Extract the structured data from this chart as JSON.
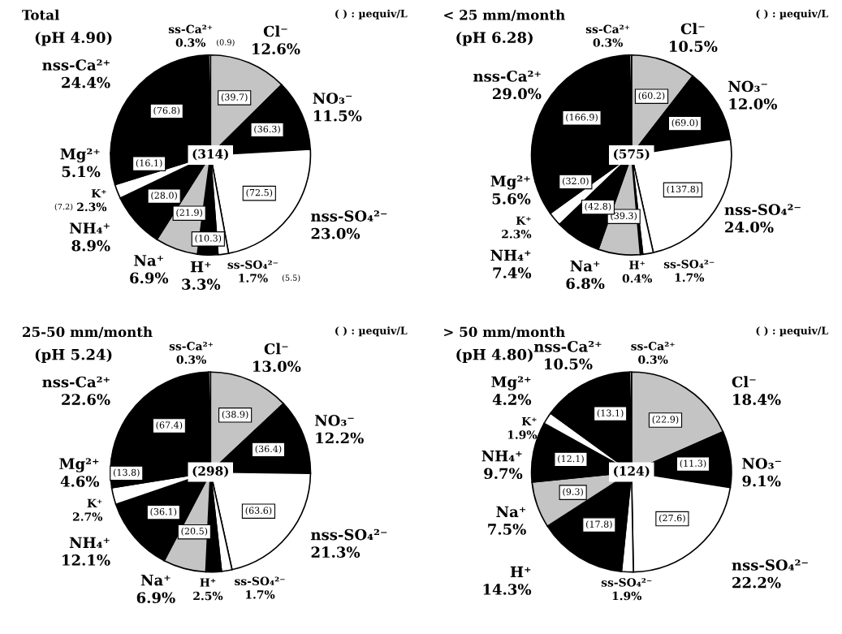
{
  "chart_data": [
    {
      "type": "pie",
      "title": "Total",
      "subtitle": "(pH 4.90)",
      "categories": [
        "Cl⁻",
        "NO₃⁻",
        "nss-SO₄²⁻",
        "ss-SO₄²⁻",
        "H⁺",
        "Na⁺",
        "NH₄⁺",
        "K⁺",
        "Mg²⁺",
        "nss-Ca²⁺",
        "ss-Ca²⁺"
      ],
      "values": [
        12.6,
        11.5,
        23.0,
        1.7,
        3.3,
        6.9,
        8.9,
        2.3,
        5.1,
        24.4,
        0.3
      ],
      "colors": [
        "#c4c4c4",
        "#000000",
        "#ffffff",
        "#ffffff",
        "#000000",
        "#c4c4c4",
        "#000000",
        "#ffffff",
        "#000000",
        "#000000",
        "#ffffff"
      ],
      "value_labels": [
        "12.6%",
        "11.5%",
        "23.0%",
        "1.7%",
        "3.3%",
        "6.9%",
        "8.9%",
        "2.3%",
        "5.1%",
        "24.4%",
        "0.3%"
      ],
      "annotations": [
        "( ) : µequiv/L",
        "(314)",
        "(39.7)",
        "(36.3)",
        "(72.5)",
        "(5.5)",
        "(10.3)",
        "(21.9)",
        "(28.0)",
        "(7.2)",
        "(16.1)",
        "(76.8)",
        "(0.9)"
      ]
    },
    {
      "type": "pie",
      "title": "< 25 mm/month",
      "subtitle": "(pH 6.28)",
      "categories": [
        "Cl⁻",
        "NO₃⁻",
        "nss-SO₄²⁻",
        "ss-SO₄²⁻",
        "H⁺",
        "Na⁺",
        "NH₄⁺",
        "K⁺",
        "Mg²⁺",
        "nss-Ca²⁺",
        "ss-Ca²⁺"
      ],
      "values": [
        10.5,
        12.0,
        24.0,
        1.7,
        0.4,
        6.8,
        7.4,
        2.3,
        5.6,
        29.0,
        0.3
      ],
      "colors": [
        "#c4c4c4",
        "#000000",
        "#ffffff",
        "#ffffff",
        "#000000",
        "#c4c4c4",
        "#000000",
        "#ffffff",
        "#000000",
        "#000000",
        "#ffffff"
      ],
      "value_labels": [
        "10.5%",
        "12.0%",
        "24.0%",
        "1.7%",
        "0.4%",
        "6.8%",
        "7.4%",
        "2.3%",
        "5.6%",
        "29.0%",
        "0.3%"
      ],
      "annotations": [
        "( ) : µequiv/L",
        "(575)",
        "(60.2)",
        "(69.0)",
        "(137.8)",
        null,
        null,
        "(39.3)",
        "(42.8)",
        null,
        "(32.0)",
        "(166.9)",
        null
      ]
    },
    {
      "type": "pie",
      "title": "25-50 mm/month",
      "subtitle": "(pH 5.24)",
      "categories": [
        "Cl⁻",
        "NO₃⁻",
        "nss-SO₄²⁻",
        "ss-SO₄²⁻",
        "H⁺",
        "Na⁺",
        "NH₄⁺",
        "K⁺",
        "Mg²⁺",
        "nss-Ca²⁺",
        "ss-Ca²⁺"
      ],
      "values": [
        13.0,
        12.2,
        21.3,
        1.7,
        2.5,
        6.9,
        12.1,
        2.7,
        4.6,
        22.6,
        0.3
      ],
      "colors": [
        "#c4c4c4",
        "#000000",
        "#ffffff",
        "#ffffff",
        "#000000",
        "#c4c4c4",
        "#000000",
        "#ffffff",
        "#000000",
        "#000000",
        "#ffffff"
      ],
      "value_labels": [
        "13.0%",
        "12.2%",
        "21.3%",
        "1.7%",
        "2.5%",
        "6.9%",
        "12.1%",
        "2.7%",
        "4.6%",
        "22.6%",
        "0.3%"
      ],
      "annotations": [
        "( ) : µequiv/L",
        "(298)",
        "(38.9)",
        "(36.4)",
        "(63.6)",
        null,
        null,
        "(20.5)",
        "(36.1)",
        null,
        "(13.8)",
        "(67.4)",
        null
      ]
    },
    {
      "type": "pie",
      "title": "> 50 mm/month",
      "subtitle": "(pH 4.80)",
      "categories": [
        "Cl⁻",
        "NO₃⁻",
        "nss-SO₄²⁻",
        "ss-SO₄²⁻",
        "H⁺",
        "Na⁺",
        "NH₄⁺",
        "K⁺",
        "Mg²⁺",
        "nss-Ca²⁺",
        "ss-Ca²⁺"
      ],
      "values": [
        18.4,
        9.1,
        22.2,
        1.9,
        14.3,
        7.5,
        9.7,
        1.9,
        4.2,
        10.5,
        0.3
      ],
      "colors": [
        "#c4c4c4",
        "#000000",
        "#ffffff",
        "#ffffff",
        "#000000",
        "#c4c4c4",
        "#000000",
        "#ffffff",
        "#000000",
        "#000000",
        "#ffffff"
      ],
      "value_labels": [
        "18.4%",
        "9.1%",
        "22.2%",
        "1.9%",
        "14.3%",
        "7.5%",
        "9.7%",
        "1.9%",
        "4.2%",
        "10.5%",
        "0.3%"
      ],
      "annotations": [
        "( ) : µequiv/L",
        "(124)",
        "(22.9)",
        "(11.3)",
        "(27.6)",
        null,
        "(17.8)",
        "(9.3)",
        "(12.1)",
        null,
        null,
        "(13.1)",
        null
      ]
    }
  ]
}
